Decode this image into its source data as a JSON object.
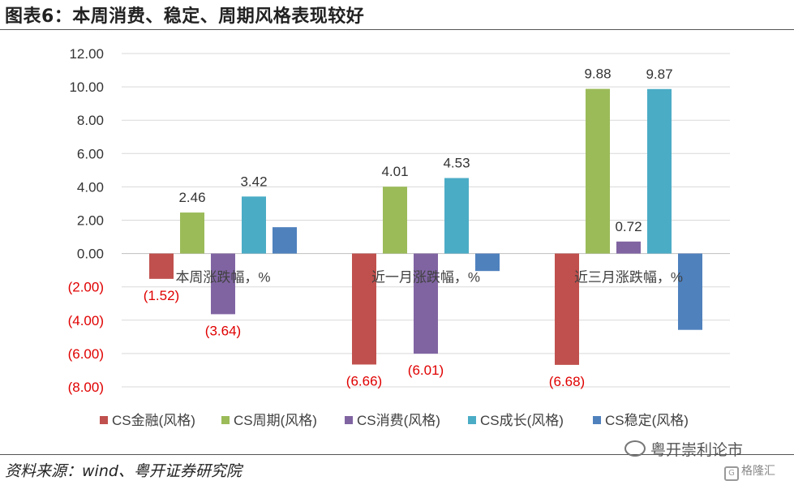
{
  "title": "图表6：本周消费、稳定、周期风格表现较好",
  "source": "资料来源：wind、粤开证券研究院",
  "watermark": "粤开崇利论市",
  "logo_text": "格隆汇",
  "logo_glyph": "G",
  "chart_data": {
    "type": "bar",
    "categories": [
      "本周涨跌幅，%",
      "近一月涨跌幅，%",
      "近三月涨跌幅，%"
    ],
    "series": [
      {
        "name": "CS金融(风格)",
        "color": "#C0504D",
        "values": [
          -1.52,
          -6.66,
          -6.68
        ],
        "labels": [
          "(1.52)",
          "(6.66)",
          "(6.68)"
        ]
      },
      {
        "name": "CS周期(风格)",
        "color": "#9BBB59",
        "values": [
          2.46,
          4.01,
          9.88
        ],
        "labels": [
          "2.46",
          "4.01",
          "9.88"
        ]
      },
      {
        "name": "CS消费(风格)",
        "color": "#8064A2",
        "values": [
          -3.64,
          -6.01,
          0.72
        ],
        "labels": [
          "(3.64)",
          "(6.01)",
          "0.72"
        ]
      },
      {
        "name": "CS成长(风格)",
        "color": "#4BACC6",
        "values": [
          3.42,
          4.53,
          9.87
        ],
        "labels": [
          "3.42",
          "4.53",
          "9.87"
        ]
      },
      {
        "name": "CS稳定(风格)",
        "color": "#4F81BD",
        "values": [
          1.58,
          -1.05,
          -4.58
        ],
        "labels": [
          null,
          null,
          null
        ]
      }
    ],
    "yticks": [
      "12.00",
      "10.00",
      "8.00",
      "6.00",
      "4.00",
      "2.00",
      "0.00",
      "(2.00)",
      "(4.00)",
      "(6.00)",
      "(8.00)"
    ],
    "ylim": [
      -8,
      12
    ],
    "positive_label_color": "#333333",
    "negative_label_color": "#E00000",
    "legend_position": "bottom"
  }
}
